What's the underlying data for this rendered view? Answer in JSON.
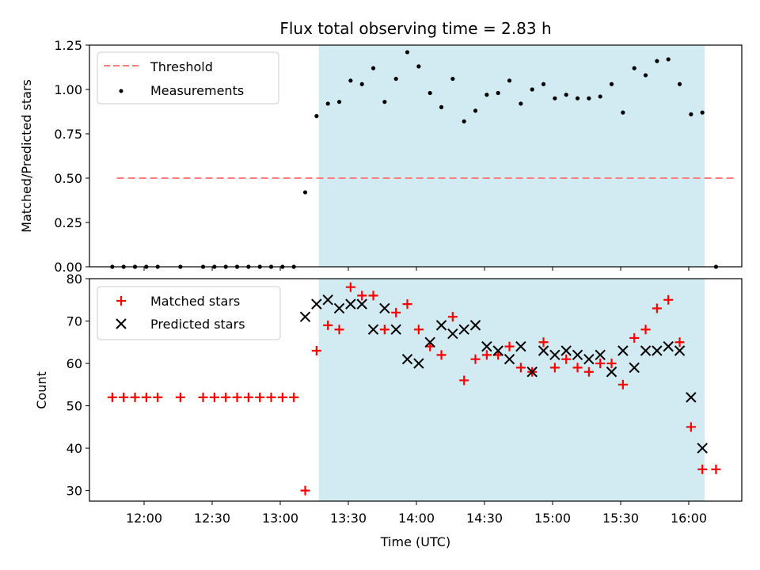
{
  "chart_data": [
    {
      "type": "scatter",
      "title": "Flux total observing time = 2.83 h",
      "ylabel": "Matched/Predicted stars",
      "xlabel": "",
      "x_ticks": [
        "12:00",
        "12:30",
        "13:00",
        "13:30",
        "14:00",
        "14:30",
        "15:00",
        "15:30",
        "16:00"
      ],
      "ylim": [
        0,
        1.25
      ],
      "y_ticks": [
        "0.00",
        "0.25",
        "0.50",
        "0.75",
        "1.00",
        "1.25"
      ],
      "legend_placement": "top-left",
      "shaded_span": [
        "13:17",
        "16:07"
      ],
      "shaded_color": "#add8e6",
      "series": [
        {
          "name": "Threshold",
          "kind": "dashed-line",
          "color": "#ff7f7f",
          "x": [
            "11:48",
            "16:20"
          ],
          "values": [
            0.5,
            0.5
          ]
        },
        {
          "name": "Measurements",
          "kind": "dot",
          "color": "#000000",
          "x": [
            "11:46",
            "11:51",
            "11:56",
            "12:01",
            "12:06",
            "12:16",
            "12:26",
            "12:31",
            "12:36",
            "12:41",
            "12:46",
            "12:51",
            "12:56",
            "13:01",
            "13:06",
            "13:11",
            "13:16",
            "13:21",
            "13:26",
            "13:31",
            "13:36",
            "13:41",
            "13:46",
            "13:51",
            "13:56",
            "14:01",
            "14:06",
            "14:11",
            "14:16",
            "14:21",
            "14:26",
            "14:31",
            "14:36",
            "14:41",
            "14:46",
            "14:51",
            "14:56",
            "15:01",
            "15:06",
            "15:11",
            "15:16",
            "15:21",
            "15:26",
            "15:31",
            "15:36",
            "15:41",
            "15:46",
            "15:51",
            "15:56",
            "16:01",
            "16:06",
            "16:12"
          ],
          "values": [
            0,
            0,
            0,
            0,
            0,
            0,
            0,
            0,
            0,
            0,
            0,
            0,
            0,
            0,
            0,
            0.42,
            0.85,
            0.92,
            0.93,
            1.05,
            1.03,
            1.12,
            0.93,
            1.06,
            1.21,
            1.13,
            0.98,
            0.9,
            1.06,
            0.82,
            0.88,
            0.97,
            0.98,
            1.05,
            0.92,
            1.0,
            1.03,
            0.95,
            0.97,
            0.95,
            0.95,
            0.96,
            1.03,
            0.87,
            1.12,
            1.08,
            1.16,
            1.17,
            1.03,
            0.86,
            0.87,
            0
          ]
        }
      ]
    },
    {
      "type": "scatter",
      "title": "",
      "ylabel": "Count",
      "xlabel": "Time (UTC)",
      "x_ticks": [
        "12:00",
        "12:30",
        "13:00",
        "13:30",
        "14:00",
        "14:30",
        "15:00",
        "15:30",
        "16:00"
      ],
      "ylim": [
        27.5,
        80
      ],
      "y_ticks": [
        "30",
        "40",
        "50",
        "60",
        "70",
        "80"
      ],
      "legend_placement": "top-left",
      "shaded_span": [
        "13:17",
        "16:07"
      ],
      "shaded_color": "#add8e6",
      "series": [
        {
          "name": "Matched stars",
          "kind": "plus",
          "color": "#ff0000",
          "x": [
            "11:46",
            "11:51",
            "11:56",
            "12:01",
            "12:06",
            "12:16",
            "12:26",
            "12:31",
            "12:36",
            "12:41",
            "12:46",
            "12:51",
            "12:56",
            "13:01",
            "13:06",
            "13:11",
            "13:16",
            "13:21",
            "13:26",
            "13:31",
            "13:36",
            "13:41",
            "13:46",
            "13:51",
            "13:56",
            "14:01",
            "14:06",
            "14:11",
            "14:16",
            "14:21",
            "14:26",
            "14:31",
            "14:36",
            "14:41",
            "14:46",
            "14:51",
            "14:56",
            "15:01",
            "15:06",
            "15:11",
            "15:16",
            "15:21",
            "15:26",
            "15:31",
            "15:36",
            "15:41",
            "15:46",
            "15:51",
            "15:56",
            "16:01",
            "16:06",
            "16:12"
          ],
          "values": [
            52,
            52,
            52,
            52,
            52,
            52,
            52,
            52,
            52,
            52,
            52,
            52,
            52,
            52,
            52,
            30,
            63,
            69,
            68,
            78,
            76,
            76,
            68,
            72,
            74,
            68,
            64,
            62,
            71,
            56,
            61,
            62,
            62,
            64,
            59,
            58,
            65,
            59,
            61,
            59,
            58,
            60,
            60,
            55,
            66,
            68,
            73,
            75,
            65,
            45,
            35,
            35
          ]
        },
        {
          "name": "Predicted stars",
          "kind": "cross",
          "color": "#000000",
          "x": [
            "13:11",
            "13:16",
            "13:21",
            "13:26",
            "13:31",
            "13:36",
            "13:41",
            "13:46",
            "13:51",
            "13:56",
            "14:01",
            "14:06",
            "14:11",
            "14:16",
            "14:21",
            "14:26",
            "14:31",
            "14:36",
            "14:41",
            "14:46",
            "14:51",
            "14:56",
            "15:01",
            "15:06",
            "15:11",
            "15:16",
            "15:21",
            "15:26",
            "15:31",
            "15:36",
            "15:41",
            "15:46",
            "15:51",
            "15:56",
            "16:01",
            "16:06"
          ],
          "values": [
            71,
            74,
            75,
            73,
            74,
            74,
            68,
            73,
            68,
            61,
            60,
            65,
            69,
            67,
            68,
            69,
            64,
            63,
            61,
            64,
            58,
            63,
            62,
            63,
            62,
            61,
            62,
            58,
            63,
            59,
            63,
            63,
            64,
            63,
            52,
            40
          ]
        }
      ]
    }
  ]
}
